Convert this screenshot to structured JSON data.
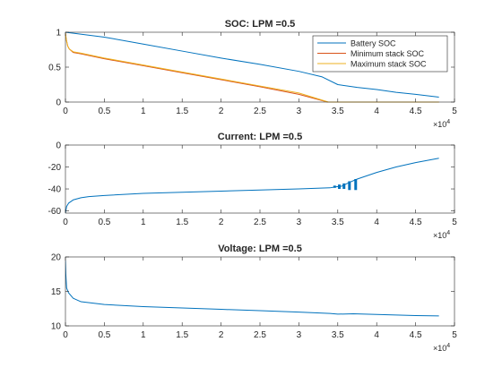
{
  "chart_data": [
    {
      "type": "line",
      "title": "SOC: LPM =0.5",
      "xlabel": "",
      "ylabel": "",
      "xlim": [
        0,
        50000
      ],
      "ylim": [
        0,
        1
      ],
      "x_exponent_label": "×10",
      "x_exponent": "4",
      "x_ticks": [
        0,
        5000,
        10000,
        15000,
        20000,
        25000,
        30000,
        35000,
        40000,
        45000,
        50000
      ],
      "x_tick_labels": [
        "0",
        "0.5",
        "1",
        "1.5",
        "2",
        "2.5",
        "3",
        "3.5",
        "4",
        "4.5",
        "5"
      ],
      "y_ticks": [
        0,
        0.5,
        1
      ],
      "y_tick_labels": [
        "0",
        "0.5",
        "1"
      ],
      "legend": {
        "placement": "top-right",
        "entries": [
          "Battery SOC",
          "Minimum stack SOC",
          "Maximum stack SOC"
        ]
      },
      "series": [
        {
          "name": "Battery SOC",
          "color": "#0072BD",
          "points": [
            [
              0,
              1.0
            ],
            [
              5000,
              0.93
            ],
            [
              10000,
              0.83
            ],
            [
              15000,
              0.73
            ],
            [
              20000,
              0.63
            ],
            [
              25000,
              0.54
            ],
            [
              30000,
              0.44
            ],
            [
              33000,
              0.36
            ],
            [
              35000,
              0.25
            ],
            [
              37500,
              0.21
            ],
            [
              40000,
              0.18
            ],
            [
              42500,
              0.14
            ],
            [
              45000,
              0.11
            ],
            [
              48000,
              0.07
            ]
          ]
        },
        {
          "name": "Minimum stack SOC",
          "color": "#D95319",
          "points": [
            [
              0,
              0.98
            ],
            [
              100,
              0.9
            ],
            [
              300,
              0.8
            ],
            [
              500,
              0.76
            ],
            [
              1000,
              0.71
            ],
            [
              2000,
              0.69
            ],
            [
              5000,
              0.62
            ],
            [
              10000,
              0.52
            ],
            [
              15000,
              0.42
            ],
            [
              20000,
              0.32
            ],
            [
              25000,
              0.22
            ],
            [
              30000,
              0.11
            ],
            [
              33700,
              0.0
            ],
            [
              48000,
              0.0
            ]
          ]
        },
        {
          "name": "Maximum stack SOC",
          "color": "#EDB120",
          "points": [
            [
              0,
              1.0
            ],
            [
              100,
              0.9
            ],
            [
              300,
              0.8
            ],
            [
              500,
              0.76
            ],
            [
              1000,
              0.72
            ],
            [
              2000,
              0.7
            ],
            [
              5000,
              0.63
            ],
            [
              10000,
              0.53
            ],
            [
              15000,
              0.43
            ],
            [
              20000,
              0.33
            ],
            [
              25000,
              0.23
            ],
            [
              30000,
              0.13
            ],
            [
              33800,
              0.0
            ],
            [
              48000,
              0.0
            ]
          ]
        }
      ]
    },
    {
      "type": "line",
      "title": "Current: LPM =0.5",
      "xlabel": "",
      "ylabel": "",
      "xlim": [
        0,
        50000
      ],
      "ylim": [
        -62,
        0
      ],
      "x_exponent_label": "×10",
      "x_exponent": "4",
      "x_ticks": [
        0,
        5000,
        10000,
        15000,
        20000,
        25000,
        30000,
        35000,
        40000,
        45000,
        50000
      ],
      "x_tick_labels": [
        "0",
        "0.5",
        "1",
        "1.5",
        "2",
        "2.5",
        "3",
        "3.5",
        "4",
        "4.5",
        "5"
      ],
      "y_ticks": [
        -60,
        -40,
        -20,
        0
      ],
      "y_tick_labels": [
        "-60",
        "-40",
        "-20",
        "0"
      ],
      "series": [
        {
          "name": "",
          "color": "#0072BD",
          "points": [
            [
              0,
              -62
            ],
            [
              150,
              -56
            ],
            [
              400,
              -53
            ],
            [
              1000,
              -50
            ],
            [
              2000,
              -48
            ],
            [
              3000,
              -47
            ],
            [
              5000,
              -46
            ],
            [
              10000,
              -44
            ],
            [
              15000,
              -43
            ],
            [
              20000,
              -42
            ],
            [
              25000,
              -41
            ],
            [
              30000,
              -40
            ],
            [
              34000,
              -39
            ],
            [
              34800,
              -38
            ],
            [
              35500,
              -37.5
            ],
            [
              36500,
              -34
            ],
            [
              37500,
              -31
            ],
            [
              40000,
              -25
            ],
            [
              42500,
              -20
            ],
            [
              45000,
              -16
            ],
            [
              48000,
              -12
            ]
          ]
        }
      ],
      "bursts": [
        {
          "x": 34600,
          "low": -39,
          "high": -37
        },
        {
          "x": 35200,
          "low": -40,
          "high": -36
        },
        {
          "x": 35800,
          "low": -40,
          "high": -35
        },
        {
          "x": 36500,
          "low": -41,
          "high": -33
        },
        {
          "x": 37300,
          "low": -41,
          "high": -31
        }
      ]
    },
    {
      "type": "line",
      "title": "Voltage: LPM =0.5",
      "xlabel": "",
      "ylabel": "",
      "xlim": [
        0,
        50000
      ],
      "ylim": [
        10,
        20
      ],
      "x_exponent_label": "×10",
      "x_exponent": "4",
      "x_ticks": [
        0,
        5000,
        10000,
        15000,
        20000,
        25000,
        30000,
        35000,
        40000,
        45000,
        50000
      ],
      "x_tick_labels": [
        "0",
        "0.5",
        "1",
        "1.5",
        "2",
        "2.5",
        "3",
        "3.5",
        "4",
        "4.5",
        "5"
      ],
      "y_ticks": [
        10,
        15,
        20
      ],
      "y_tick_labels": [
        "10",
        "15",
        "20"
      ],
      "series": [
        {
          "name": "",
          "color": "#0072BD",
          "points": [
            [
              0,
              19.5
            ],
            [
              50,
              17.5
            ],
            [
              150,
              15.5
            ],
            [
              400,
              14.8
            ],
            [
              1000,
              14.0
            ],
            [
              2000,
              13.5
            ],
            [
              5000,
              13.1
            ],
            [
              10000,
              12.8
            ],
            [
              15000,
              12.6
            ],
            [
              20000,
              12.4
            ],
            [
              25000,
              12.2
            ],
            [
              30000,
              12.0
            ],
            [
              34000,
              11.8
            ],
            [
              35000,
              11.7
            ],
            [
              37000,
              11.75
            ],
            [
              40000,
              11.65
            ],
            [
              45000,
              11.5
            ],
            [
              48000,
              11.45
            ]
          ]
        }
      ]
    }
  ]
}
